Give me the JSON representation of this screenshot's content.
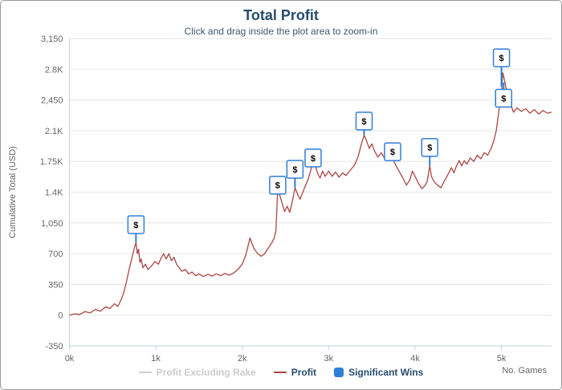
{
  "chart_data": {
    "type": "line",
    "title": "Total Profit",
    "subtitle": "Click and drag inside the plot area to zoom-in",
    "xlabel": "No. Games",
    "ylabel": "Cumulative Total (USD)",
    "xlim": [
      0,
      5580
    ],
    "ylim": [
      -350,
      3150
    ],
    "grid": "horizontal",
    "x_ticks": {
      "values": [
        0,
        1000,
        2000,
        3000,
        4000,
        5000
      ],
      "labels": [
        "0k",
        "1k",
        "2k",
        "3k",
        "4k",
        "5k"
      ]
    },
    "y_ticks": {
      "values": [
        -350,
        0,
        350,
        700,
        1050,
        1400,
        1750,
        2100,
        2450,
        2800,
        3150
      ],
      "labels": [
        "-350",
        "0",
        "350",
        "700",
        "1,050",
        "1.4K",
        "1.75K",
        "2.1K",
        "2,450",
        "2.8K",
        "3,150"
      ]
    },
    "series": [
      {
        "name": "Profit",
        "color": "#AA4643",
        "visible": true,
        "points": [
          [
            0,
            0
          ],
          [
            60,
            15
          ],
          [
            120,
            8
          ],
          [
            180,
            40
          ],
          [
            240,
            25
          ],
          [
            300,
            65
          ],
          [
            360,
            45
          ],
          [
            420,
            95
          ],
          [
            470,
            75
          ],
          [
            520,
            130
          ],
          [
            560,
            100
          ],
          [
            600,
            180
          ],
          [
            630,
            260
          ],
          [
            660,
            380
          ],
          [
            690,
            520
          ],
          [
            720,
            640
          ],
          [
            750,
            760
          ],
          [
            770,
            830
          ],
          [
            785,
            700
          ],
          [
            800,
            750
          ],
          [
            815,
            600
          ],
          [
            830,
            640
          ],
          [
            850,
            540
          ],
          [
            880,
            580
          ],
          [
            910,
            520
          ],
          [
            950,
            560
          ],
          [
            990,
            610
          ],
          [
            1030,
            580
          ],
          [
            1060,
            650
          ],
          [
            1090,
            700
          ],
          [
            1120,
            640
          ],
          [
            1150,
            700
          ],
          [
            1180,
            620
          ],
          [
            1210,
            660
          ],
          [
            1240,
            580
          ],
          [
            1270,
            540
          ],
          [
            1300,
            500
          ],
          [
            1340,
            520
          ],
          [
            1380,
            470
          ],
          [
            1420,
            490
          ],
          [
            1460,
            450
          ],
          [
            1500,
            470
          ],
          [
            1550,
            440
          ],
          [
            1600,
            465
          ],
          [
            1650,
            445
          ],
          [
            1700,
            470
          ],
          [
            1750,
            450
          ],
          [
            1800,
            475
          ],
          [
            1850,
            455
          ],
          [
            1900,
            480
          ],
          [
            1950,
            520
          ],
          [
            2000,
            580
          ],
          [
            2040,
            680
          ],
          [
            2070,
            800
          ],
          [
            2090,
            880
          ],
          [
            2110,
            820
          ],
          [
            2140,
            750
          ],
          [
            2180,
            700
          ],
          [
            2220,
            670
          ],
          [
            2260,
            700
          ],
          [
            2300,
            760
          ],
          [
            2340,
            820
          ],
          [
            2370,
            880
          ],
          [
            2390,
            960
          ],
          [
            2410,
            1440
          ],
          [
            2430,
            1380
          ],
          [
            2460,
            1280
          ],
          [
            2490,
            1180
          ],
          [
            2520,
            1240
          ],
          [
            2550,
            1170
          ],
          [
            2580,
            1300
          ],
          [
            2610,
            1450
          ],
          [
            2640,
            1380
          ],
          [
            2670,
            1320
          ],
          [
            2700,
            1400
          ],
          [
            2730,
            1470
          ],
          [
            2760,
            1540
          ],
          [
            2790,
            1640
          ],
          [
            2820,
            1760
          ],
          [
            2845,
            1700
          ],
          [
            2870,
            1620
          ],
          [
            2900,
            1560
          ],
          [
            2930,
            1640
          ],
          [
            2960,
            1580
          ],
          [
            3000,
            1640
          ],
          [
            3040,
            1580
          ],
          [
            3080,
            1630
          ],
          [
            3120,
            1570
          ],
          [
            3160,
            1620
          ],
          [
            3200,
            1590
          ],
          [
            3250,
            1650
          ],
          [
            3300,
            1710
          ],
          [
            3340,
            1800
          ],
          [
            3380,
            1950
          ],
          [
            3410,
            2050
          ],
          [
            3440,
            1980
          ],
          [
            3470,
            1900
          ],
          [
            3500,
            1950
          ],
          [
            3530,
            1870
          ],
          [
            3570,
            1800
          ],
          [
            3610,
            1850
          ],
          [
            3650,
            1780
          ],
          [
            3700,
            1830
          ],
          [
            3740,
            1780
          ],
          [
            3780,
            1700
          ],
          [
            3820,
            1630
          ],
          [
            3860,
            1560
          ],
          [
            3900,
            1480
          ],
          [
            3940,
            1540
          ],
          [
            3970,
            1640
          ],
          [
            4000,
            1580
          ],
          [
            4040,
            1500
          ],
          [
            4080,
            1440
          ],
          [
            4110,
            1470
          ],
          [
            4140,
            1520
          ],
          [
            4170,
            1700
          ],
          [
            4190,
            1580
          ],
          [
            4220,
            1520
          ],
          [
            4260,
            1480
          ],
          [
            4300,
            1450
          ],
          [
            4340,
            1530
          ],
          [
            4380,
            1600
          ],
          [
            4420,
            1680
          ],
          [
            4450,
            1620
          ],
          [
            4480,
            1700
          ],
          [
            4510,
            1760
          ],
          [
            4540,
            1700
          ],
          [
            4570,
            1760
          ],
          [
            4600,
            1720
          ],
          [
            4640,
            1790
          ],
          [
            4680,
            1750
          ],
          [
            4720,
            1820
          ],
          [
            4760,
            1780
          ],
          [
            4800,
            1850
          ],
          [
            4840,
            1820
          ],
          [
            4880,
            1900
          ],
          [
            4910,
            1980
          ],
          [
            4940,
            2100
          ],
          [
            4960,
            2250
          ],
          [
            4980,
            2400
          ],
          [
            5000,
            2520
          ],
          [
            5015,
            2760
          ],
          [
            5030,
            2700
          ],
          [
            5050,
            2600
          ],
          [
            5070,
            2480
          ],
          [
            5100,
            2420
          ],
          [
            5140,
            2310
          ],
          [
            5180,
            2360
          ],
          [
            5230,
            2320
          ],
          [
            5280,
            2350
          ],
          [
            5330,
            2300
          ],
          [
            5380,
            2340
          ],
          [
            5430,
            2290
          ],
          [
            5480,
            2330
          ],
          [
            5530,
            2300
          ],
          [
            5580,
            2310
          ]
        ]
      },
      {
        "name": "Profit Excluding Rake",
        "color": "#cccccc",
        "visible": false,
        "points": []
      }
    ],
    "markers": {
      "name": "Significant Wins",
      "flag_label": "$",
      "color": "#2f7ed8",
      "points": [
        {
          "x": 770,
          "anchor_y": 830,
          "box_y": 1030
        },
        {
          "x": 2410,
          "anchor_y": 1440,
          "box_y": 1480
        },
        {
          "x": 2610,
          "anchor_y": 1450,
          "box_y": 1660
        },
        {
          "x": 2820,
          "anchor_y": 1760,
          "box_y": 1790
        },
        {
          "x": 3410,
          "anchor_y": 2050,
          "box_y": 2210
        },
        {
          "x": 3740,
          "anchor_y": 1780,
          "box_y": 1860
        },
        {
          "x": 4170,
          "anchor_y": 1700,
          "box_y": 1910
        },
        {
          "x": 5000,
          "anchor_y": 2600,
          "box_y": 2930
        },
        {
          "x": 5025,
          "anchor_y": 2650,
          "box_y": 2470
        }
      ]
    },
    "legend": {
      "items": [
        {
          "label": "Profit Excluding Rake",
          "color": "#cccccc",
          "symbol": "line",
          "enabled": false
        },
        {
          "label": "Profit",
          "color": "#AA4643",
          "symbol": "line",
          "enabled": true
        },
        {
          "label": "Significant Wins",
          "color": "#2f7ed8",
          "symbol": "square",
          "enabled": true
        }
      ]
    },
    "colors": {
      "title": "#274b6d",
      "axis_label": "#666666",
      "axis_line": "#c0d0e0",
      "gridline": "#e6e6e6",
      "legend_enabled_text": "#274b6d",
      "legend_disabled_text": "#cccccc"
    }
  }
}
